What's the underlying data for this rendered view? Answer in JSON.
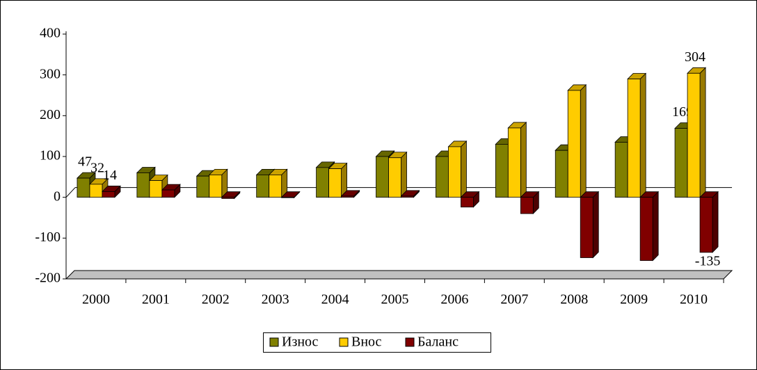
{
  "chart_data": {
    "type": "bar3d",
    "categories": [
      "2000",
      "2001",
      "2002",
      "2003",
      "2004",
      "2005",
      "2006",
      "2007",
      "2008",
      "2009",
      "2010"
    ],
    "series": [
      {
        "name": "Износ",
        "color": "#808000",
        "values": [
          47,
          60,
          52,
          55,
          73,
          100,
          100,
          130,
          115,
          135,
          169
        ],
        "value_labels": [
          "47",
          null,
          null,
          null,
          null,
          null,
          null,
          null,
          null,
          null,
          "169"
        ]
      },
      {
        "name": "Внос",
        "color": "#ffcc00",
        "values": [
          32,
          41,
          55,
          55,
          70,
          97,
          124,
          170,
          262,
          290,
          304
        ],
        "value_labels": [
          "32",
          null,
          null,
          null,
          null,
          null,
          null,
          null,
          null,
          null,
          "304"
        ]
      },
      {
        "name": "Баланс",
        "color": "#800000",
        "values": [
          14,
          18,
          -3,
          -1,
          3,
          3,
          -24,
          -40,
          -148,
          -155,
          -135
        ],
        "value_labels": [
          "14",
          null,
          null,
          null,
          null,
          null,
          null,
          null,
          null,
          null,
          "-135"
        ]
      }
    ],
    "ylim": [
      -200,
      400
    ],
    "yticks": [
      -200,
      -100,
      0,
      100,
      200,
      300,
      400
    ],
    "legend": "bottom"
  }
}
